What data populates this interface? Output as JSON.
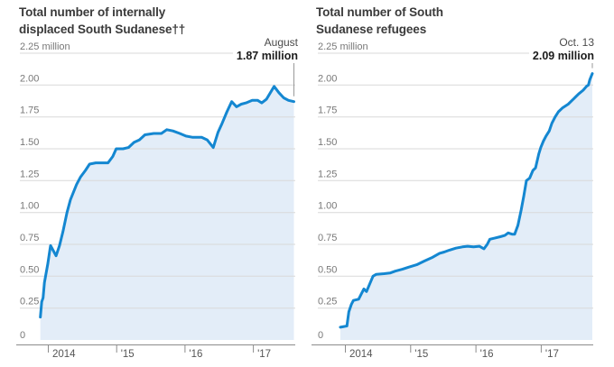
{
  "colors": {
    "line": "#1487d1",
    "fill": "#e3edf8",
    "grid": "#d9d9d9",
    "axis": "#8c8c8c",
    "marker": "#9a9a9a",
    "y_label": "#787878",
    "x_label": "#555555",
    "title": "#3a3a3a"
  },
  "chart_data": [
    {
      "type": "area",
      "title_line1": "Total number of internally",
      "title_line2": "displaced South Sudanese††",
      "annotation_date": "August",
      "annotation_value": "1.87 million",
      "ylim": [
        0,
        2.25
      ],
      "xlim": [
        2013.85,
        2017.65
      ],
      "grid": true,
      "legend": "none",
      "y_ticks": [
        2.25,
        2.0,
        1.75,
        1.5,
        1.25,
        1.0,
        0.75,
        0.5,
        0.25
      ],
      "y_tick_labels": [
        "2.25 million",
        "2.00",
        "1.75",
        "1.50",
        "1.25",
        "1.00",
        "0.75",
        "0.50",
        "0.25"
      ],
      "zero_label": "0",
      "x_ticks": [
        2014,
        2015,
        2016,
        2017
      ],
      "x_tick_labels": [
        "2014",
        "'15",
        "'16",
        "'17"
      ],
      "points": [
        [
          2013.89,
          0.18
        ],
        [
          2013.91,
          0.3
        ],
        [
          2013.93,
          0.33
        ],
        [
          2013.95,
          0.45
        ],
        [
          2014.0,
          0.6
        ],
        [
          2014.03,
          0.71
        ],
        [
          2014.04,
          0.74
        ],
        [
          2014.08,
          0.7
        ],
        [
          2014.12,
          0.66
        ],
        [
          2014.17,
          0.74
        ],
        [
          2014.22,
          0.85
        ],
        [
          2014.28,
          1.0
        ],
        [
          2014.33,
          1.1
        ],
        [
          2014.42,
          1.22
        ],
        [
          2014.48,
          1.28
        ],
        [
          2014.55,
          1.33
        ],
        [
          2014.61,
          1.38
        ],
        [
          2014.7,
          1.39
        ],
        [
          2014.88,
          1.39
        ],
        [
          2014.95,
          1.44
        ],
        [
          2015.0,
          1.5
        ],
        [
          2015.1,
          1.5
        ],
        [
          2015.18,
          1.51
        ],
        [
          2015.26,
          1.55
        ],
        [
          2015.34,
          1.57
        ],
        [
          2015.42,
          1.61
        ],
        [
          2015.55,
          1.62
        ],
        [
          2015.66,
          1.62
        ],
        [
          2015.74,
          1.65
        ],
        [
          2015.83,
          1.64
        ],
        [
          2015.93,
          1.62
        ],
        [
          2016.02,
          1.6
        ],
        [
          2016.12,
          1.59
        ],
        [
          2016.25,
          1.59
        ],
        [
          2016.33,
          1.57
        ],
        [
          2016.42,
          1.51
        ],
        [
          2016.49,
          1.63
        ],
        [
          2016.55,
          1.7
        ],
        [
          2016.62,
          1.79
        ],
        [
          2016.69,
          1.87
        ],
        [
          2016.76,
          1.83
        ],
        [
          2016.83,
          1.85
        ],
        [
          2016.9,
          1.86
        ],
        [
          2016.99,
          1.88
        ],
        [
          2017.07,
          1.88
        ],
        [
          2017.13,
          1.86
        ],
        [
          2017.2,
          1.89
        ],
        [
          2017.31,
          1.99
        ],
        [
          2017.38,
          1.94
        ],
        [
          2017.45,
          1.9
        ],
        [
          2017.52,
          1.88
        ],
        [
          2017.6,
          1.87
        ]
      ]
    },
    {
      "type": "area",
      "title_line1": "Total number of South",
      "title_line2": "Sudanese refugees",
      "annotation_date": "Oct. 13",
      "annotation_value": "2.09 million",
      "ylim": [
        0,
        2.25
      ],
      "xlim": [
        2013.9,
        2017.85
      ],
      "grid": true,
      "legend": "none",
      "y_ticks": [
        2.25,
        2.0,
        1.75,
        1.5,
        1.25,
        1.0,
        0.75,
        0.5,
        0.25
      ],
      "y_tick_labels": [
        "2.25 million",
        "2.00",
        "1.75",
        "1.50",
        "1.25",
        "1.00",
        "0.75",
        "0.50",
        "0.25"
      ],
      "zero_label": "0",
      "x_ticks": [
        2014,
        2015,
        2016,
        2017
      ],
      "x_tick_labels": [
        "2014",
        "'15",
        "'16",
        "'17"
      ],
      "points": [
        [
          2013.93,
          0.1
        ],
        [
          2014.03,
          0.11
        ],
        [
          2014.06,
          0.22
        ],
        [
          2014.1,
          0.28
        ],
        [
          2014.13,
          0.31
        ],
        [
          2014.21,
          0.32
        ],
        [
          2014.25,
          0.36
        ],
        [
          2014.29,
          0.4
        ],
        [
          2014.33,
          0.38
        ],
        [
          2014.38,
          0.44
        ],
        [
          2014.43,
          0.5
        ],
        [
          2014.48,
          0.515
        ],
        [
          2014.6,
          0.52
        ],
        [
          2014.69,
          0.525
        ],
        [
          2014.77,
          0.54
        ],
        [
          2014.88,
          0.555
        ],
        [
          2014.97,
          0.57
        ],
        [
          2015.1,
          0.59
        ],
        [
          2015.22,
          0.62
        ],
        [
          2015.33,
          0.645
        ],
        [
          2015.45,
          0.68
        ],
        [
          2015.52,
          0.69
        ],
        [
          2015.6,
          0.705
        ],
        [
          2015.7,
          0.72
        ],
        [
          2015.8,
          0.73
        ],
        [
          2015.88,
          0.735
        ],
        [
          2015.97,
          0.73
        ],
        [
          2016.06,
          0.735
        ],
        [
          2016.13,
          0.715
        ],
        [
          2016.18,
          0.75
        ],
        [
          2016.22,
          0.79
        ],
        [
          2016.3,
          0.8
        ],
        [
          2016.38,
          0.81
        ],
        [
          2016.45,
          0.82
        ],
        [
          2016.5,
          0.84
        ],
        [
          2016.56,
          0.83
        ],
        [
          2016.6,
          0.83
        ],
        [
          2016.65,
          0.9
        ],
        [
          2016.7,
          1.02
        ],
        [
          2016.74,
          1.13
        ],
        [
          2016.78,
          1.25
        ],
        [
          2016.83,
          1.27
        ],
        [
          2016.88,
          1.33
        ],
        [
          2016.92,
          1.35
        ],
        [
          2016.97,
          1.46
        ],
        [
          2017.0,
          1.51
        ],
        [
          2017.04,
          1.56
        ],
        [
          2017.08,
          1.6
        ],
        [
          2017.13,
          1.64
        ],
        [
          2017.17,
          1.7
        ],
        [
          2017.22,
          1.75
        ],
        [
          2017.27,
          1.79
        ],
        [
          2017.33,
          1.82
        ],
        [
          2017.42,
          1.85
        ],
        [
          2017.5,
          1.89
        ],
        [
          2017.58,
          1.93
        ],
        [
          2017.65,
          1.96
        ],
        [
          2017.7,
          1.99
        ],
        [
          2017.73,
          2.0
        ],
        [
          2017.75,
          2.04
        ],
        [
          2017.79,
          2.09
        ]
      ]
    }
  ]
}
